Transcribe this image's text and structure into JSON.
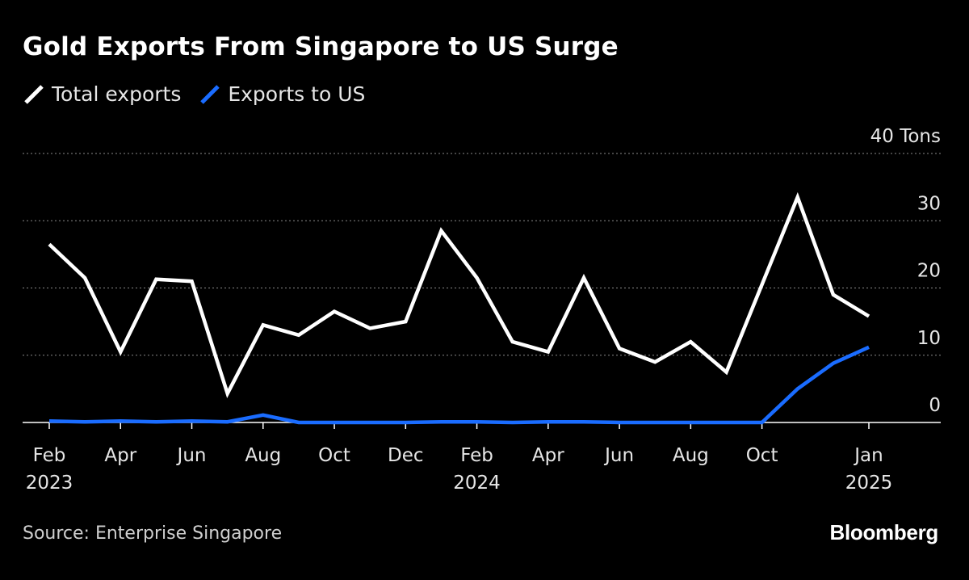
{
  "chart_data": {
    "type": "line",
    "title": "Gold Exports From Singapore to US Surge",
    "ylabel": "",
    "y_unit_label": "Tons",
    "ylim": [
      0,
      40
    ],
    "yticks": [
      0,
      10,
      20,
      30,
      40
    ],
    "grid": true,
    "legend_placement": "top-left",
    "x": [
      "2023-02",
      "2023-03",
      "2023-04",
      "2023-05",
      "2023-06",
      "2023-07",
      "2023-08",
      "2023-09",
      "2023-10",
      "2023-11",
      "2023-12",
      "2024-01",
      "2024-02",
      "2024-03",
      "2024-04",
      "2024-05",
      "2024-06",
      "2024-07",
      "2024-08",
      "2024-09",
      "2024-10",
      "2024-11",
      "2024-12",
      "2025-01"
    ],
    "xtick_labels": [
      {
        "x": "2023-02",
        "line1": "Feb",
        "line2": "2023"
      },
      {
        "x": "2023-04",
        "line1": "Apr",
        "line2": ""
      },
      {
        "x": "2023-06",
        "line1": "Jun",
        "line2": ""
      },
      {
        "x": "2023-08",
        "line1": "Aug",
        "line2": ""
      },
      {
        "x": "2023-10",
        "line1": "Oct",
        "line2": ""
      },
      {
        "x": "2023-12",
        "line1": "Dec",
        "line2": ""
      },
      {
        "x": "2024-02",
        "line1": "Feb",
        "line2": "2024"
      },
      {
        "x": "2024-04",
        "line1": "Apr",
        "line2": ""
      },
      {
        "x": "2024-06",
        "line1": "Jun",
        "line2": ""
      },
      {
        "x": "2024-08",
        "line1": "Aug",
        "line2": ""
      },
      {
        "x": "2024-10",
        "line1": "Oct",
        "line2": ""
      },
      {
        "x": "2025-01",
        "line1": "Jan",
        "line2": "2025"
      }
    ],
    "series": [
      {
        "name": "Total exports",
        "color": "#ffffff",
        "values": [
          26.5,
          21.5,
          10.5,
          21.3,
          21.0,
          4.3,
          14.5,
          13.0,
          16.5,
          14.0,
          15.0,
          28.5,
          21.5,
          12.0,
          10.5,
          21.5,
          11.0,
          9.0,
          12.0,
          7.5,
          20.5,
          33.5,
          19.0,
          15.8
        ]
      },
      {
        "name": "Exports to US",
        "color": "#1a6cff",
        "values": [
          0.2,
          0.1,
          0.2,
          0.1,
          0.2,
          0.1,
          1.1,
          0.0,
          0.0,
          0.0,
          0.0,
          0.1,
          0.1,
          0.0,
          0.1,
          0.1,
          0.0,
          0.0,
          0.0,
          0.0,
          0.0,
          5.0,
          8.8,
          11.2
        ]
      }
    ]
  },
  "source": "Source: Enterprise Singapore",
  "brand": "Bloomberg"
}
